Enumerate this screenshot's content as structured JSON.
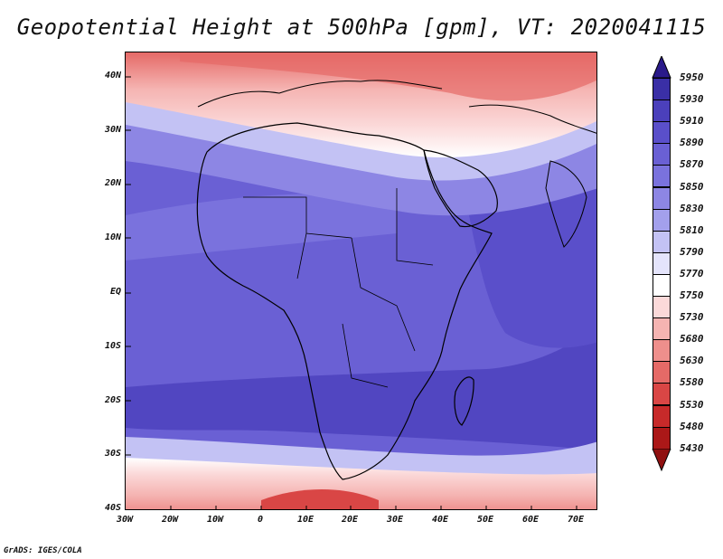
{
  "title": "Geopotential Height at 500hPa [gpm], VT: 2020041115",
  "credit": "GrADS: IGES/COLA",
  "lat_labels": [
    "40N",
    "30N",
    "20N",
    "10N",
    "EQ",
    "10S",
    "20S",
    "30S",
    "40S"
  ],
  "lon_labels": [
    "30W",
    "20W",
    "10W",
    "0",
    "10E",
    "20E",
    "30E",
    "40E",
    "50E",
    "60E",
    "70E"
  ],
  "colorbar": {
    "levels": [
      "5950",
      "5930",
      "5910",
      "5890",
      "5870",
      "5850",
      "5830",
      "5810",
      "5790",
      "5770",
      "5750",
      "5730",
      "5680",
      "5630",
      "5580",
      "5530",
      "5480",
      "5430"
    ],
    "colors": [
      "#2a1a8a",
      "#3a2fa6",
      "#4b40bb",
      "#5a4fca",
      "#6a60d4",
      "#7a72dd",
      "#8d86e4",
      "#a3a0ec",
      "#c3c2f4",
      "#e4e4fb",
      "#ffffff",
      "#fbd9d9",
      "#f5b4b2",
      "#ee8f8c",
      "#e56a67",
      "#d94645",
      "#c72a2a",
      "#ab1818",
      "#901010"
    ]
  }
}
